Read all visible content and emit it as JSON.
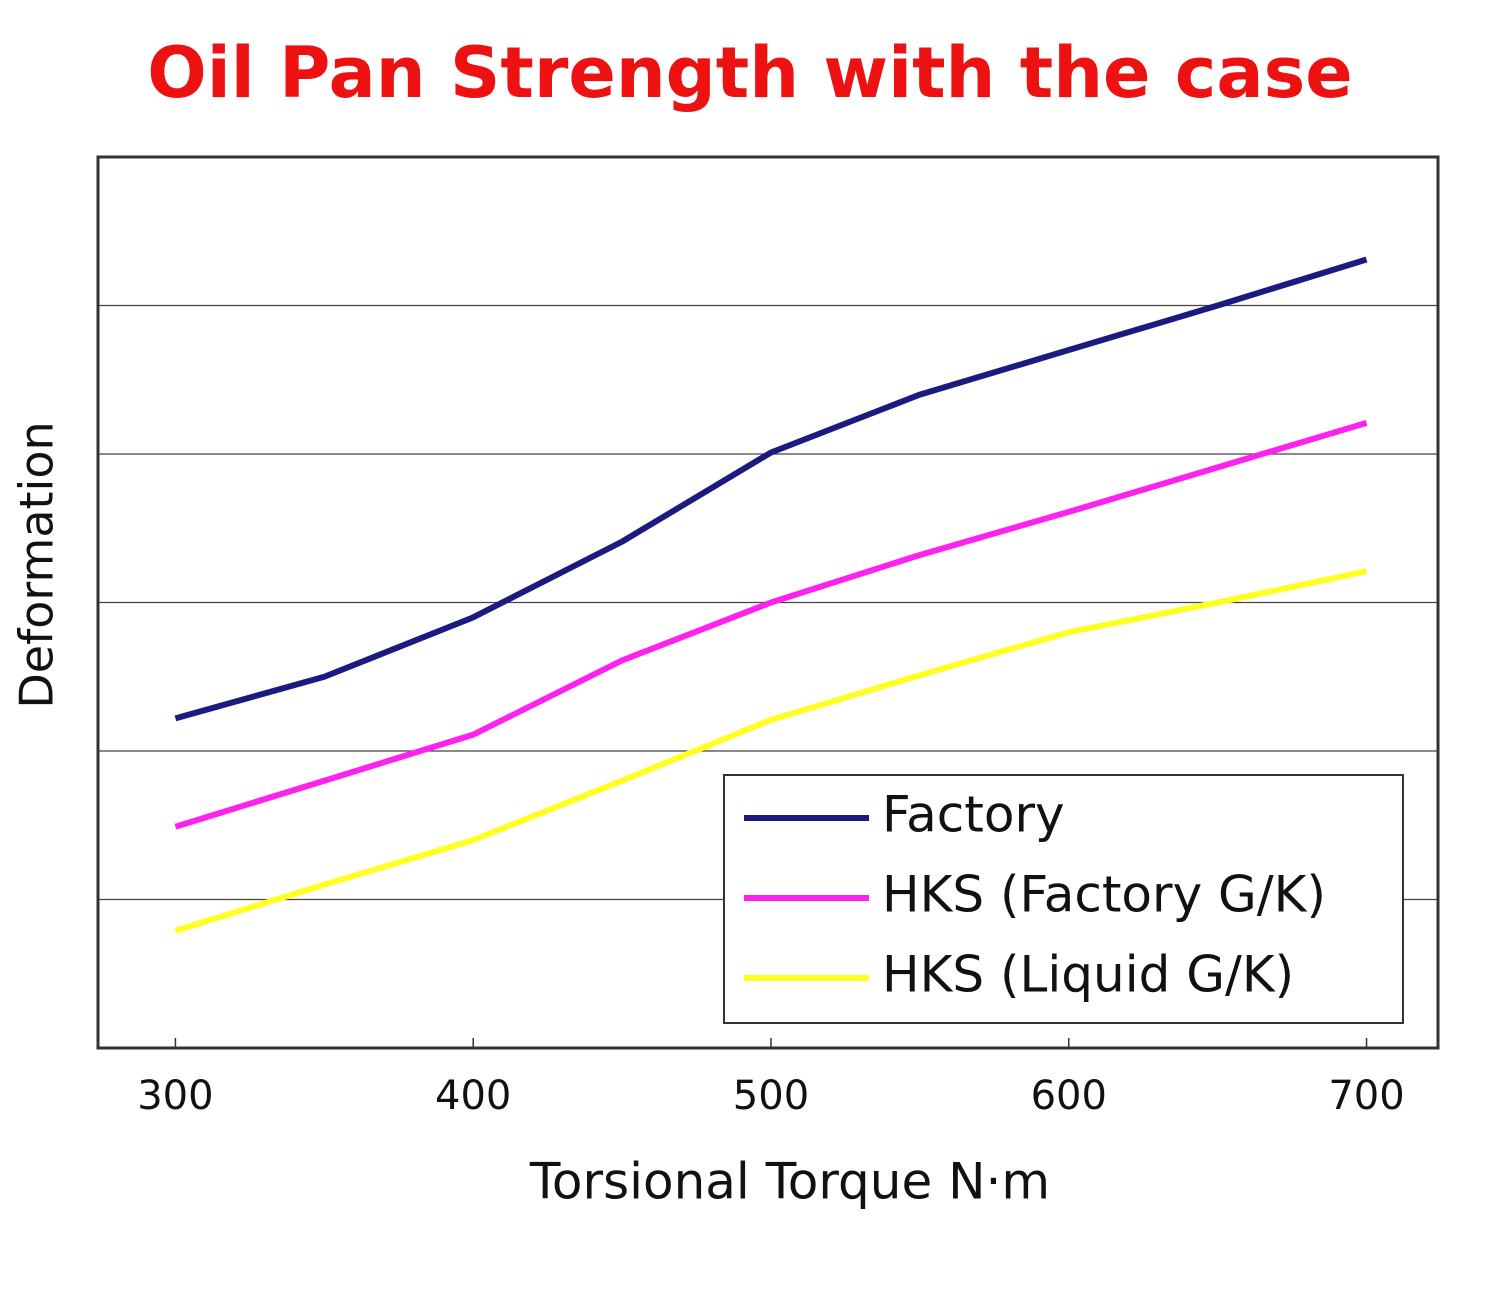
{
  "chart_data": {
    "type": "line",
    "title": "Oil Pan Strength with the case",
    "x_label": "Torsional Torque N·m",
    "y_label": "Deformation",
    "x": [
      300,
      350,
      400,
      450,
      500,
      550,
      600,
      650,
      700
    ],
    "series": [
      {
        "name": "Factory",
        "color": "#1a1a80",
        "values": [
          2.22,
          2.5,
          2.9,
          3.41,
          4.01,
          4.4,
          4.7,
          5.0,
          5.31
        ]
      },
      {
        "name": "HKS (Factory G/K)",
        "color": "#ff22ee",
        "values": [
          1.49,
          1.8,
          2.11,
          2.61,
          3.0,
          3.32,
          3.61,
          3.91,
          4.21
        ]
      },
      {
        "name": "HKS (Liquid G/K)",
        "color": "#ffff22",
        "values": [
          0.79,
          1.1,
          1.4,
          1.8,
          2.21,
          2.51,
          2.8,
          3.0,
          3.21
        ]
      }
    ],
    "xlim": [
      274,
      724
    ],
    "xticks": [
      300,
      400,
      500,
      600,
      700
    ],
    "ylim": [
      0,
      6
    ],
    "yticks": [
      1,
      2,
      3,
      4,
      5
    ],
    "grid": true,
    "legend": "lower right"
  }
}
